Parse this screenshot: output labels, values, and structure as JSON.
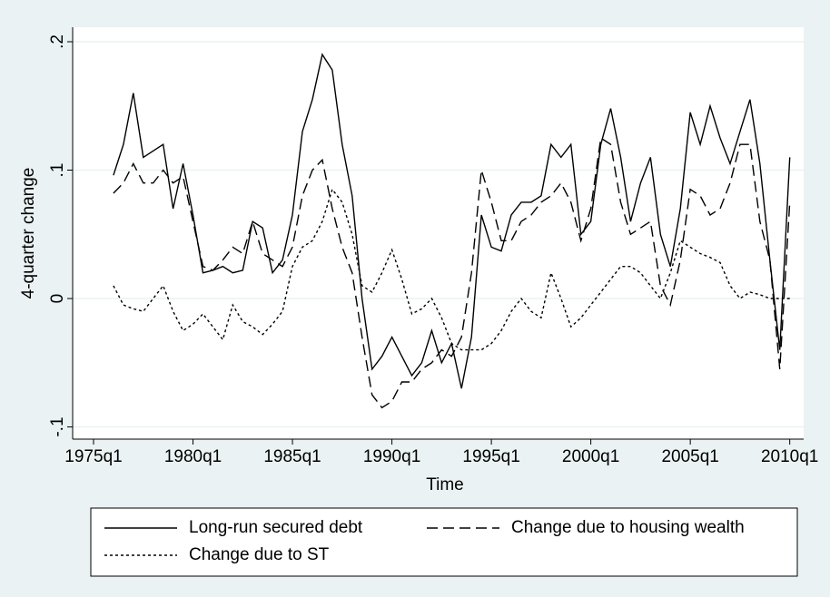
{
  "chart_data": {
    "type": "line",
    "y_label": "4-quarter change",
    "x_label": "Time",
    "x": [
      1976,
      1976.5,
      1977,
      1977.5,
      1978,
      1978.5,
      1979,
      1979.5,
      1980,
      1980.5,
      1981,
      1981.5,
      1982,
      1982.5,
      1983,
      1983.5,
      1984,
      1984.5,
      1985,
      1985.5,
      1986,
      1986.5,
      1987,
      1987.5,
      1988,
      1988.5,
      1989,
      1989.5,
      1990,
      1990.5,
      1991,
      1991.5,
      1992,
      1992.5,
      1993,
      1993.5,
      1994,
      1994.5,
      1995,
      1995.5,
      1996,
      1996.5,
      1997,
      1997.5,
      1998,
      1998.5,
      1999,
      1999.5,
      2000,
      2000.5,
      2001,
      2001.5,
      2002,
      2002.5,
      2003,
      2003.5,
      2004,
      2004.5,
      2005,
      2005.5,
      2006,
      2006.5,
      2007,
      2007.5,
      2008,
      2008.5,
      2009,
      2009.5,
      2010
    ],
    "series": [
      {
        "name": "Long-run secured debt",
        "color": "#000000",
        "style": "solid",
        "values": [
          0.096,
          0.12,
          0.16,
          0.11,
          0.115,
          0.12,
          0.07,
          0.105,
          0.065,
          0.02,
          0.022,
          0.025,
          0.02,
          0.022,
          0.06,
          0.055,
          0.02,
          0.03,
          0.065,
          0.13,
          0.155,
          0.19,
          0.178,
          0.12,
          0.08,
          0.0,
          -0.055,
          -0.045,
          -0.03,
          -0.045,
          -0.06,
          -0.05,
          -0.025,
          -0.05,
          -0.035,
          -0.07,
          -0.03,
          0.065,
          0.04,
          0.037,
          0.065,
          0.075,
          0.075,
          0.08,
          0.12,
          0.11,
          0.12,
          0.05,
          0.06,
          0.12,
          0.148,
          0.11,
          0.06,
          0.09,
          0.11,
          0.05,
          0.025,
          0.07,
          0.145,
          0.12,
          0.15,
          0.125,
          0.105,
          0.13,
          0.155,
          0.105,
          0.03,
          -0.04,
          0.11
        ]
      },
      {
        "name": "Change due to housing wealth",
        "color": "#000000",
        "style": "dash",
        "values": [
          0.082,
          0.09,
          0.105,
          0.09,
          0.09,
          0.1,
          0.09,
          0.095,
          0.06,
          0.025,
          0.022,
          0.03,
          0.04,
          0.035,
          0.06,
          0.035,
          0.03,
          0.025,
          0.04,
          0.08,
          0.1,
          0.108,
          0.07,
          0.04,
          0.02,
          -0.03,
          -0.075,
          -0.085,
          -0.08,
          -0.065,
          -0.065,
          -0.055,
          -0.05,
          -0.04,
          -0.045,
          -0.03,
          0.02,
          0.1,
          0.075,
          0.045,
          0.045,
          0.06,
          0.065,
          0.075,
          0.08,
          0.09,
          0.075,
          0.045,
          0.07,
          0.125,
          0.12,
          0.075,
          0.05,
          0.055,
          0.06,
          0.01,
          -0.005,
          0.03,
          0.085,
          0.08,
          0.065,
          0.07,
          0.09,
          0.12,
          0.12,
          0.06,
          0.03,
          -0.055,
          0.075
        ]
      },
      {
        "name": "Change due to ST",
        "color": "#000000",
        "style": "dot",
        "values": [
          0.01,
          -0.005,
          -0.008,
          -0.01,
          0.0,
          0.01,
          -0.01,
          -0.025,
          -0.02,
          -0.012,
          -0.022,
          -0.032,
          -0.005,
          -0.018,
          -0.022,
          -0.028,
          -0.02,
          -0.01,
          0.025,
          0.04,
          0.045,
          0.06,
          0.085,
          0.075,
          0.05,
          0.01,
          0.005,
          0.02,
          0.038,
          0.015,
          -0.012,
          -0.008,
          0.0,
          -0.015,
          -0.035,
          -0.04,
          -0.04,
          -0.04,
          -0.035,
          -0.025,
          -0.01,
          0.0,
          -0.01,
          -0.015,
          0.02,
          0.0,
          -0.022,
          -0.015,
          -0.005,
          0.005,
          0.015,
          0.025,
          0.025,
          0.02,
          0.01,
          0.0,
          0.02,
          0.045,
          0.04,
          0.035,
          0.032,
          0.028,
          0.01,
          0.0,
          0.005,
          0.003,
          0.0,
          0.0,
          0.0
        ]
      }
    ],
    "xlim": [
      1973.95,
      2010.7
    ],
    "xticks": [
      {
        "value": 1975,
        "label": "1975q1"
      },
      {
        "value": 1980,
        "label": "1980q1"
      },
      {
        "value": 1985,
        "label": "1985q1"
      },
      {
        "value": 1990,
        "label": "1990q1"
      },
      {
        "value": 1995,
        "label": "1995q1"
      },
      {
        "value": 2000,
        "label": "2000q1"
      },
      {
        "value": 2005,
        "label": "2005q1"
      },
      {
        "value": 2010,
        "label": "2010q1"
      }
    ],
    "ylim": [
      -0.1095,
      0.2113
    ],
    "yticks": [
      {
        "value": -0.1,
        "label": "-.1"
      },
      0,
      {
        "value": 0.1,
        "label": ".1"
      },
      {
        "value": 0.2,
        "label": ".2"
      }
    ],
    "grid": true
  }
}
